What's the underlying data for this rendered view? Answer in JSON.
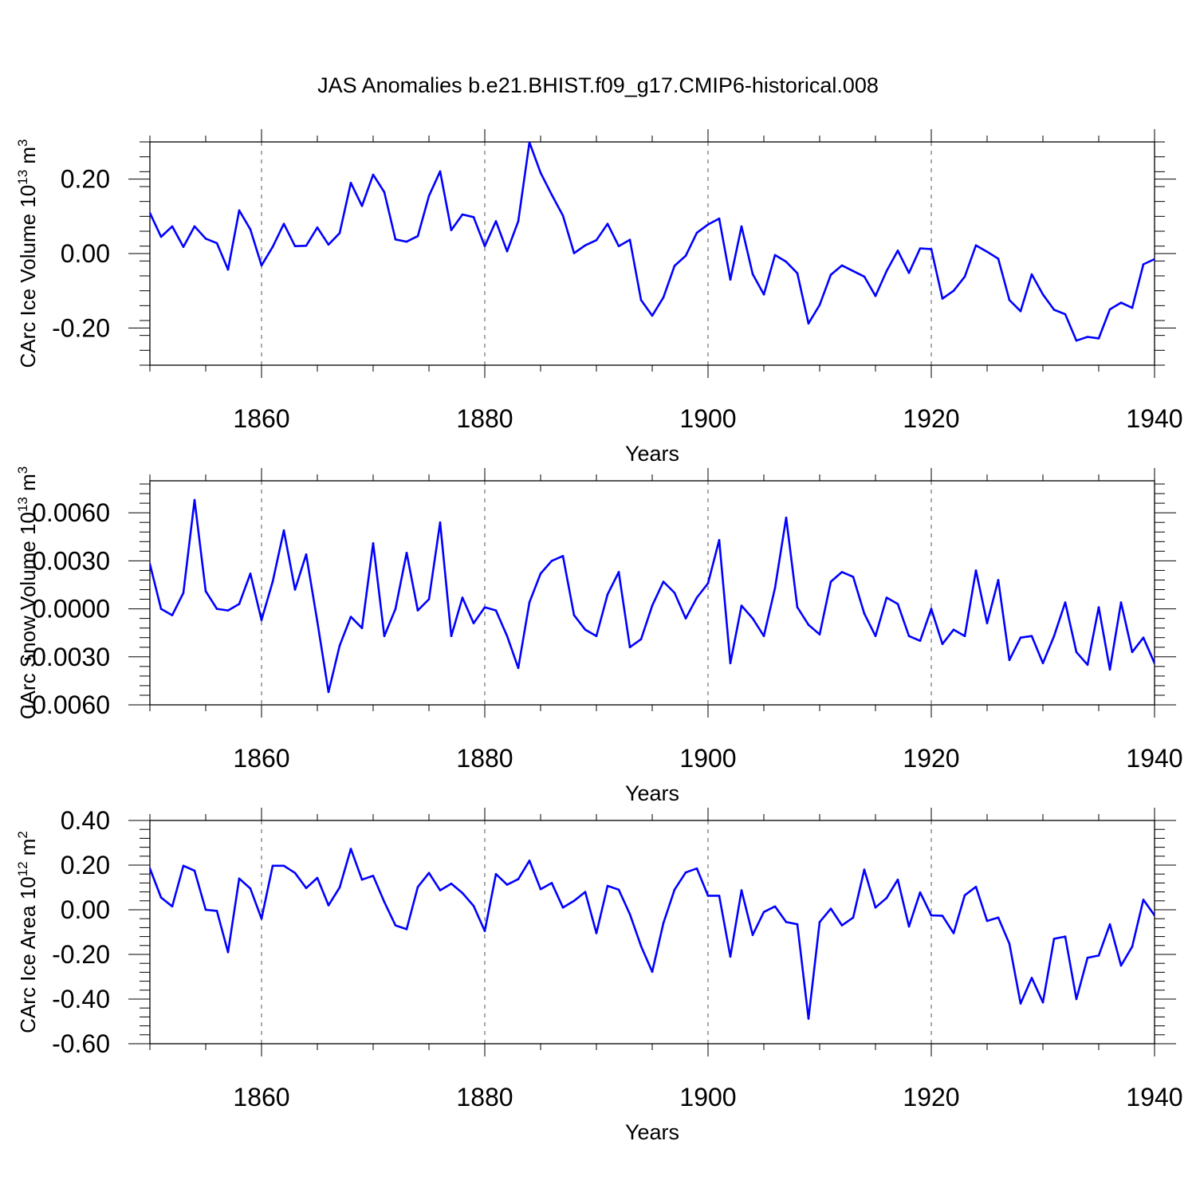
{
  "title": "JAS Anomalies b.e21.BHIST.f09_g17.CMIP6-historical.008",
  "colors": {
    "series": "#0000ff",
    "axis": "#000000",
    "grid": "#555555"
  },
  "chart_data": [
    {
      "type": "line",
      "title": "JAS Anomalies b.e21.BHIST.f09_g17.CMIP6-historical.008",
      "xlabel": "Years",
      "ylabel": "CArc Ice Volume 10",
      "ylabel_exp": "13",
      "ylabel_unit": " m",
      "ylabel_unit_exp": "3",
      "xlim": [
        1850,
        1940
      ],
      "ylim": [
        -0.3,
        0.3
      ],
      "xticks": [
        1860,
        1880,
        1900,
        1920,
        1940
      ],
      "xtick_labels": [
        "1860",
        "1880",
        "1900",
        "1920",
        "1940"
      ],
      "yticks": [
        -0.2,
        0.0,
        0.2
      ],
      "ytick_labels": [
        "-0.20",
        "0.00",
        "0.20"
      ],
      "grid": "dashed vertical at major x ticks",
      "series": [
        {
          "name": "CArc Ice Volume",
          "x": [
            1850,
            1851,
            1852,
            1853,
            1854,
            1855,
            1856,
            1857,
            1858,
            1859,
            1860,
            1861,
            1862,
            1863,
            1864,
            1865,
            1866,
            1867,
            1868,
            1869,
            1870,
            1871,
            1872,
            1873,
            1874,
            1875,
            1876,
            1877,
            1878,
            1879,
            1880,
            1881,
            1882,
            1883,
            1884,
            1885,
            1886,
            1887,
            1888,
            1889,
            1890,
            1891,
            1892,
            1893,
            1894,
            1895,
            1896,
            1897,
            1898,
            1899,
            1900,
            1901,
            1902,
            1903,
            1904,
            1905,
            1906,
            1907,
            1908,
            1909,
            1910,
            1911,
            1912,
            1913,
            1914,
            1915,
            1916,
            1917,
            1918,
            1919,
            1920,
            1921,
            1922,
            1923,
            1924,
            1925,
            1926,
            1927,
            1928,
            1929,
            1930,
            1931,
            1932,
            1933,
            1934,
            1935,
            1936,
            1937,
            1938,
            1939,
            1940
          ],
          "values": [
            0.109,
            0.045,
            0.073,
            0.018,
            0.073,
            0.04,
            0.028,
            -0.043,
            0.116,
            0.065,
            -0.032,
            0.018,
            0.08,
            0.02,
            0.021,
            0.07,
            0.024,
            0.055,
            0.19,
            0.128,
            0.212,
            0.165,
            0.038,
            0.032,
            0.047,
            0.155,
            0.221,
            0.063,
            0.105,
            0.098,
            0.02,
            0.087,
            0.006,
            0.087,
            0.299,
            0.217,
            0.158,
            0.102,
            0.001,
            0.022,
            0.036,
            0.08,
            0.02,
            0.037,
            -0.125,
            -0.167,
            -0.118,
            -0.033,
            -0.006,
            0.056,
            0.078,
            0.094,
            -0.07,
            0.073,
            -0.055,
            -0.11,
            -0.004,
            -0.022,
            -0.053,
            -0.188,
            -0.138,
            -0.057,
            -0.032,
            -0.047,
            -0.062,
            -0.114,
            -0.047,
            0.008,
            -0.052,
            0.014,
            0.012,
            -0.121,
            -0.1,
            -0.062,
            0.022,
            0.005,
            -0.014,
            -0.125,
            -0.155,
            -0.056,
            -0.11,
            -0.151,
            -0.163,
            -0.234,
            -0.224,
            -0.228,
            -0.15,
            -0.132,
            -0.146,
            -0.029,
            -0.015
          ]
        }
      ]
    },
    {
      "type": "line",
      "xlabel": "Years",
      "ylabel": "CArc Snow Volume 10",
      "ylabel_exp": "13",
      "ylabel_unit": " m",
      "ylabel_unit_exp": "3",
      "xlim": [
        1850,
        1940
      ],
      "ylim": [
        -0.006,
        0.008
      ],
      "xticks": [
        1860,
        1880,
        1900,
        1920,
        1940
      ],
      "xtick_labels": [
        "1860",
        "1880",
        "1900",
        "1920",
        "1940"
      ],
      "yticks": [
        -0.006,
        -0.003,
        0.0,
        0.003,
        0.006
      ],
      "ytick_labels": [
        "-0.0060",
        "-0.0030",
        "0.0000",
        "0.0030",
        "0.0060"
      ],
      "grid": "dashed vertical at major x ticks",
      "series": [
        {
          "name": "CArc Snow Volume",
          "x": [
            1850,
            1851,
            1852,
            1853,
            1854,
            1855,
            1856,
            1857,
            1858,
            1859,
            1860,
            1861,
            1862,
            1863,
            1864,
            1865,
            1866,
            1867,
            1868,
            1869,
            1870,
            1871,
            1872,
            1873,
            1874,
            1875,
            1876,
            1877,
            1878,
            1879,
            1880,
            1881,
            1882,
            1883,
            1884,
            1885,
            1886,
            1887,
            1888,
            1889,
            1890,
            1891,
            1892,
            1893,
            1894,
            1895,
            1896,
            1897,
            1898,
            1899,
            1900,
            1901,
            1902,
            1903,
            1904,
            1905,
            1906,
            1907,
            1908,
            1909,
            1910,
            1911,
            1912,
            1913,
            1914,
            1915,
            1916,
            1917,
            1918,
            1919,
            1920,
            1921,
            1922,
            1923,
            1924,
            1925,
            1926,
            1927,
            1928,
            1929,
            1930,
            1931,
            1932,
            1933,
            1934,
            1935,
            1936,
            1937,
            1938,
            1939,
            1940
          ],
          "values": [
            0.0028,
            0.0,
            -0.0004,
            0.001,
            0.0068,
            0.0011,
            0.0,
            -0.0001,
            0.0003,
            0.0022,
            -0.0007,
            0.0017,
            0.0049,
            0.0012,
            0.0034,
            -0.0008,
            -0.0052,
            -0.0023,
            -0.0005,
            -0.0012,
            0.0041,
            -0.0017,
            0.0,
            0.0035,
            -0.0001,
            0.0006,
            0.0054,
            -0.0017,
            0.0007,
            -0.0009,
            0.0001,
            -0.0001,
            -0.0017,
            -0.0037,
            0.0004,
            0.0022,
            0.003,
            0.0033,
            -0.0004,
            -0.0013,
            -0.0017,
            0.0009,
            0.0023,
            -0.0024,
            -0.0019,
            0.0002,
            0.0017,
            0.001,
            -0.0006,
            0.0007,
            0.0016,
            0.0043,
            -0.0034,
            0.0002,
            -0.0006,
            -0.0017,
            0.0013,
            0.0057,
            0.0001,
            -0.001,
            -0.0016,
            0.0017,
            0.0023,
            0.002,
            -0.0003,
            -0.0017,
            0.0007,
            0.0003,
            -0.0017,
            -0.002,
            0.0,
            -0.0022,
            -0.0013,
            -0.0017,
            0.0024,
            -0.0009,
            0.0018,
            -0.0032,
            -0.0018,
            -0.0017,
            -0.0034,
            -0.0017,
            0.0004,
            -0.0027,
            -0.0035,
            0.0001,
            -0.0038,
            0.0004,
            -0.0027,
            -0.0018,
            -0.0034
          ]
        }
      ]
    },
    {
      "type": "line",
      "xlabel": "Years",
      "ylabel": "CArc Ice Area 10",
      "ylabel_exp": "12",
      "ylabel_unit": " m",
      "ylabel_unit_exp": "2",
      "xlim": [
        1850,
        1940
      ],
      "ylim": [
        -0.6,
        0.4
      ],
      "xticks": [
        1860,
        1880,
        1900,
        1920,
        1940
      ],
      "xtick_labels": [
        "1860",
        "1880",
        "1900",
        "1920",
        "1940"
      ],
      "yticks": [
        -0.6,
        -0.4,
        -0.2,
        0.0,
        0.2,
        0.4
      ],
      "ytick_labels": [
        "-0.60",
        "-0.40",
        "-0.20",
        "0.00",
        "0.20",
        "0.40"
      ],
      "grid": "dashed vertical at major x ticks",
      "series": [
        {
          "name": "CArc Ice Area",
          "x": [
            1850,
            1851,
            1852,
            1853,
            1854,
            1855,
            1856,
            1857,
            1858,
            1859,
            1860,
            1861,
            1862,
            1863,
            1864,
            1865,
            1866,
            1867,
            1868,
            1869,
            1870,
            1871,
            1872,
            1873,
            1874,
            1875,
            1876,
            1877,
            1878,
            1879,
            1880,
            1881,
            1882,
            1883,
            1884,
            1885,
            1886,
            1887,
            1888,
            1889,
            1890,
            1891,
            1892,
            1893,
            1894,
            1895,
            1896,
            1897,
            1898,
            1899,
            1900,
            1901,
            1902,
            1903,
            1904,
            1905,
            1906,
            1907,
            1908,
            1909,
            1910,
            1911,
            1912,
            1913,
            1914,
            1915,
            1916,
            1917,
            1918,
            1919,
            1920,
            1921,
            1922,
            1923,
            1924,
            1925,
            1926,
            1927,
            1928,
            1929,
            1930,
            1931,
            1932,
            1933,
            1934,
            1935,
            1936,
            1937,
            1938,
            1939,
            1940
          ],
          "values": [
            0.185,
            0.055,
            0.015,
            0.197,
            0.175,
            0.0,
            -0.005,
            -0.19,
            0.14,
            0.095,
            -0.04,
            0.197,
            0.197,
            0.165,
            0.097,
            0.143,
            0.02,
            0.1,
            0.273,
            0.135,
            0.152,
            0.035,
            -0.07,
            -0.087,
            0.102,
            0.165,
            0.087,
            0.117,
            0.075,
            0.017,
            -0.095,
            0.16,
            0.112,
            0.137,
            0.22,
            0.092,
            0.12,
            0.01,
            0.04,
            0.08,
            -0.105,
            0.107,
            0.09,
            -0.02,
            -0.163,
            -0.278,
            -0.06,
            0.09,
            0.167,
            0.185,
            0.063,
            0.063,
            -0.21,
            0.087,
            -0.113,
            -0.01,
            0.015,
            -0.055,
            -0.065,
            -0.488,
            -0.055,
            0.005,
            -0.07,
            -0.035,
            0.18,
            0.01,
            0.053,
            0.135,
            -0.075,
            0.078,
            -0.025,
            -0.027,
            -0.105,
            0.065,
            0.103,
            -0.05,
            -0.035,
            -0.153,
            -0.42,
            -0.305,
            -0.415,
            -0.13,
            -0.12,
            -0.4,
            -0.215,
            -0.205,
            -0.065,
            -0.25,
            -0.165,
            0.045,
            -0.025
          ]
        }
      ]
    }
  ]
}
